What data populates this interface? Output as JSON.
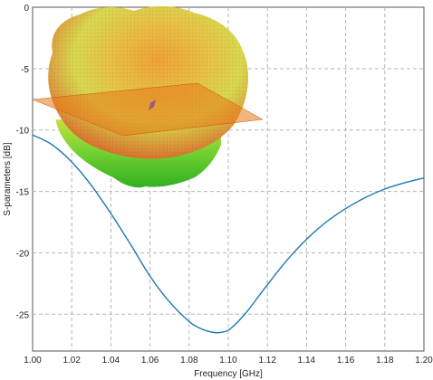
{
  "chart_data": {
    "type": "line",
    "xlabel": "Frequency [GHz]",
    "ylabel": "S-parameters [dB]",
    "xlim": [
      1.0,
      1.2
    ],
    "ylim": [
      -28,
      0
    ],
    "x_ticks": [
      "1.00",
      "1.02",
      "1.04",
      "1.06",
      "1.08",
      "1.10",
      "1.12",
      "1.14",
      "1.16",
      "1.18",
      "1.20"
    ],
    "y_ticks": [
      "0",
      "-5",
      "-10",
      "-15",
      "-20",
      "-25"
    ],
    "grid": true,
    "series": [
      {
        "color": "#1f77b4",
        "x": [
          1.0,
          1.01,
          1.02,
          1.03,
          1.04,
          1.05,
          1.06,
          1.07,
          1.08,
          1.085,
          1.09,
          1.095,
          1.1,
          1.105,
          1.11,
          1.12,
          1.13,
          1.14,
          1.15,
          1.16,
          1.17,
          1.18,
          1.19,
          1.2
        ],
        "y": [
          -10.4,
          -11.2,
          -12.6,
          -14.5,
          -16.8,
          -19.3,
          -21.9,
          -24.0,
          -25.6,
          -26.1,
          -26.4,
          -26.5,
          -26.3,
          -25.6,
          -24.7,
          -22.6,
          -20.6,
          -18.9,
          -17.5,
          -16.4,
          -15.5,
          -14.8,
          -14.3,
          -13.9
        ]
      }
    ],
    "inset": {
      "kind": "3d-radiation-pattern",
      "colors": [
        "#e05a2a",
        "#f0a030",
        "#e8d040",
        "#9ad030",
        "#40c020"
      ]
    }
  }
}
